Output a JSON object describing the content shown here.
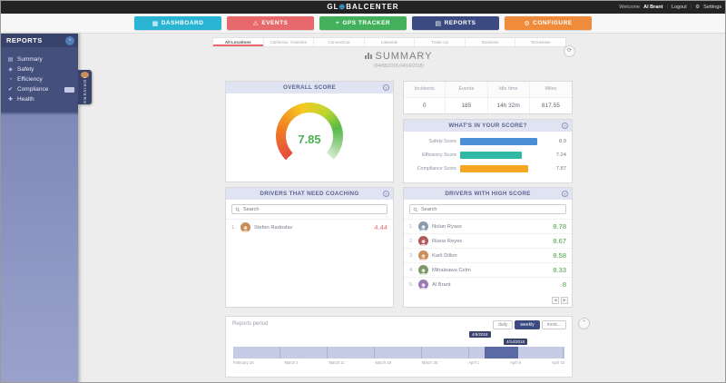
{
  "topbar": {
    "logo_left": "GL",
    "logo_right": "BALCENTER",
    "welcome_prefix": "Welcome",
    "user": "Al Brant",
    "logout": "Logout",
    "settings": "Settings"
  },
  "nav": {
    "items": [
      {
        "label": "DASHBOARD",
        "color": "#2ab4d4"
      },
      {
        "label": "EVENTS",
        "color": "#e8696b"
      },
      {
        "label": "GPS TRACKER",
        "color": "#43b05c"
      },
      {
        "label": "REPORTS",
        "color": "#3b4a80"
      },
      {
        "label": "CONFIGURE",
        "color": "#ef8b3a"
      }
    ]
  },
  "sidebar": {
    "title": "REPORTS",
    "items": [
      {
        "label": "Summary"
      },
      {
        "label": "Safety"
      },
      {
        "label": "Efficiency"
      },
      {
        "label": "Compliance"
      },
      {
        "label": "Health"
      }
    ],
    "drivers_tab": "DRIVERS"
  },
  "tabs": {
    "items": [
      {
        "label": "All Locations"
      },
      {
        "label": "California, Yosemite"
      },
      {
        "label": "Connecticut"
      },
      {
        "label": "Lakeside"
      },
      {
        "label": "Trade Up"
      },
      {
        "label": "Business"
      },
      {
        "label": "Tennessee"
      }
    ]
  },
  "summary": {
    "title": "SUMMARY",
    "date_range": "(04/08/2018-04/14/2018)"
  },
  "overall": {
    "title": "OVERALL SCORE",
    "value": "7.85",
    "value_color": "#4caf50"
  },
  "stats": {
    "columns": [
      "Incidents",
      "Events",
      "Idle time",
      "Miles"
    ],
    "values": [
      "0",
      "185",
      "14h 32m",
      "817.55"
    ]
  },
  "breakdown": {
    "title": "WHAT'S IN YOUR SCORE?",
    "bars": [
      {
        "label": "Safety Score",
        "value": "8.9",
        "color": "#4a90d9",
        "width_pct": 88
      },
      {
        "label": "Efficiency Score",
        "value": "7.24",
        "color": "#2fb9a5",
        "width_pct": 70
      },
      {
        "label": "Compliance Score",
        "value": "7.87",
        "color": "#f5a623",
        "width_pct": 77
      }
    ]
  },
  "coaching": {
    "title": "DRIVERS THAT NEED COACHING",
    "search_placeholder": "Search",
    "rows": [
      {
        "rank": "1.",
        "name": "Stefan Radoslav",
        "score": "4.44"
      }
    ]
  },
  "high": {
    "title": "DRIVERS WITH HIGH SCORE",
    "search_placeholder": "Search",
    "rows": [
      {
        "rank": "1.",
        "name": "Nolan Ryass",
        "score": "8.78"
      },
      {
        "rank": "2.",
        "name": "Riana Reyes",
        "score": "8.67"
      },
      {
        "rank": "3.",
        "name": "Karli Dillon",
        "score": "8.58"
      },
      {
        "rank": "4.",
        "name": "Mihaleawa Celm",
        "score": "8.33"
      },
      {
        "rank": "5.",
        "name": "Al Brant",
        "score": "8"
      }
    ]
  },
  "period": {
    "label": "Reports period",
    "buttons": [
      {
        "label": "daily"
      },
      {
        "label": "weekly"
      },
      {
        "label": "mont..."
      }
    ],
    "start_tooltip": "4/8/2018",
    "end_tooltip": "4/14/2018",
    "axis": [
      "February 25",
      "March 4",
      "March 11",
      "March 18",
      "March 25",
      "April 1",
      "April 8",
      "April 15"
    ]
  }
}
